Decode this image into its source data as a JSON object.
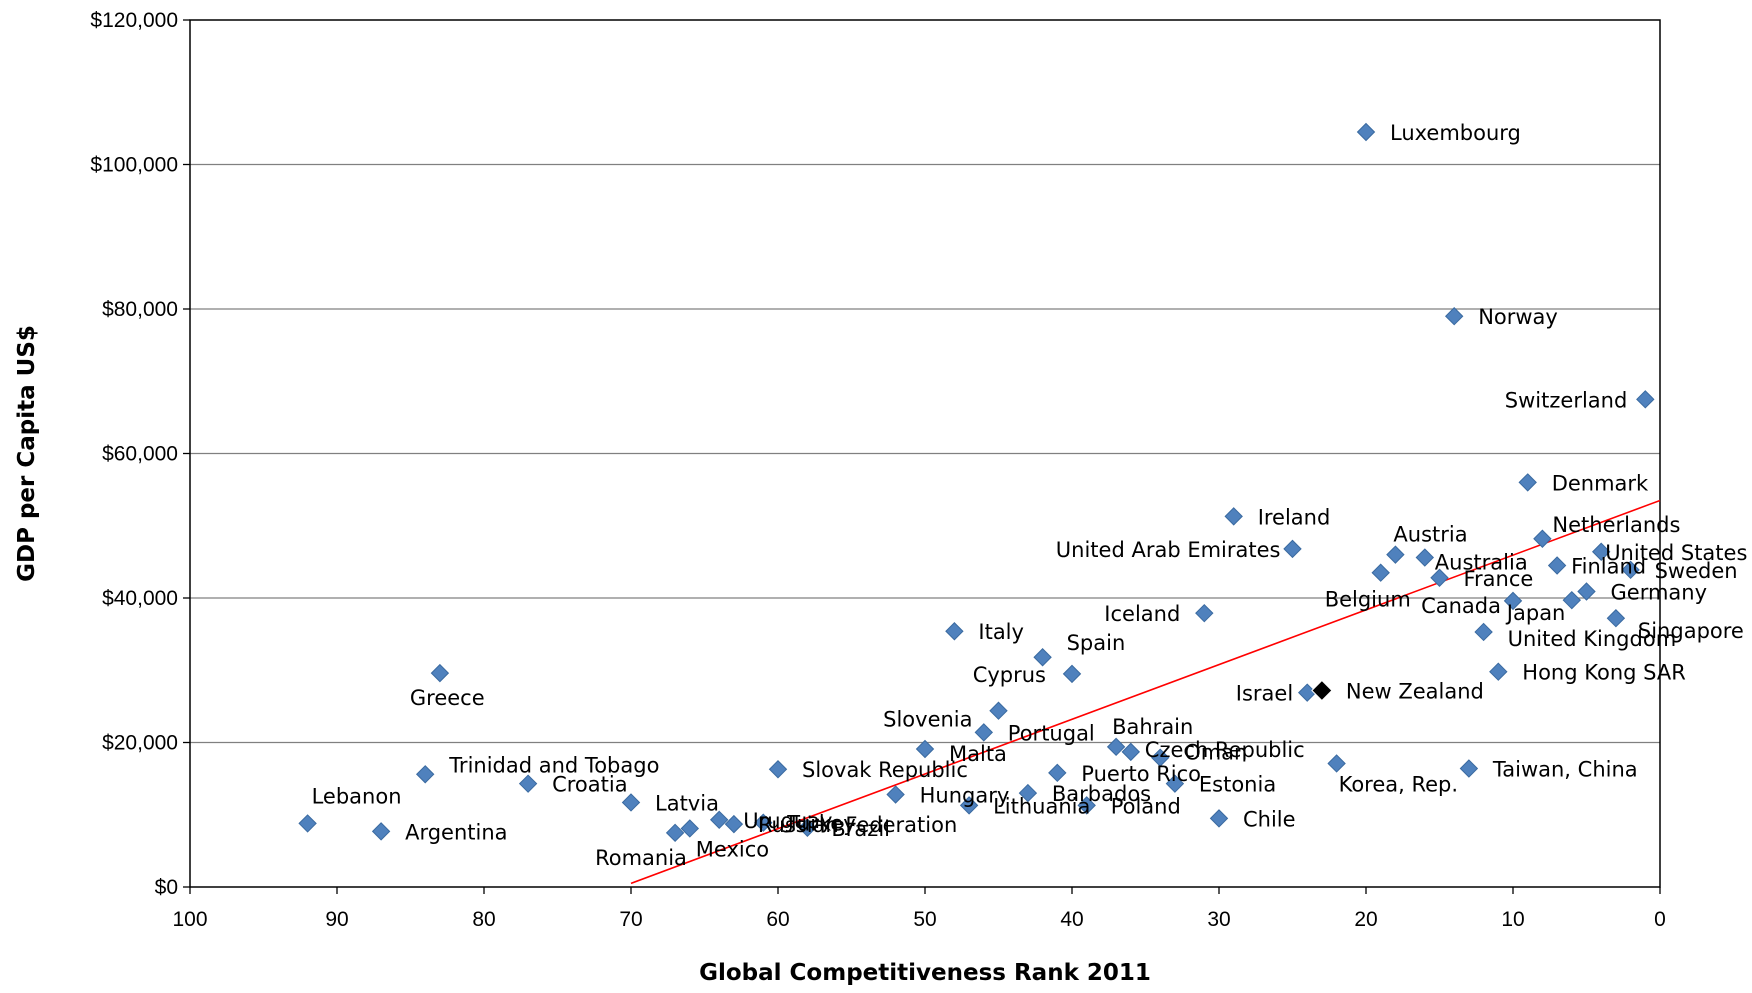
{
  "chart_data": {
    "type": "scatter",
    "title": "",
    "xlabel": "Global Competitiveness Rank 2011",
    "ylabel": "GDP per Capita US$",
    "xlim": [
      100,
      0
    ],
    "x_reversed": true,
    "ylim": [
      0,
      120000
    ],
    "xticks": [
      "100",
      "90",
      "80",
      "70",
      "60",
      "50",
      "40",
      "30",
      "20",
      "10",
      "0"
    ],
    "yticks": [
      "$0",
      "$20,000",
      "$40,000",
      "$60,000",
      "$80,000",
      "$100,000",
      "$120,000"
    ],
    "grid": "horizontal",
    "legend": "none",
    "colors": {
      "marker": "#4f81bd",
      "marker_edge": "#3a6aa0",
      "highlight": "#000000",
      "trendline": "#ff0000",
      "grid": "#808080"
    },
    "trendline": {
      "x": [
        70,
        0
      ],
      "y": [
        500,
        53500
      ]
    },
    "points": [
      {
        "label": "Luxembourg",
        "x": 20,
        "y": 104500
      },
      {
        "label": "Norway",
        "x": 14,
        "y": 79000
      },
      {
        "label": "Switzerland",
        "x": 1,
        "y": 67500
      },
      {
        "label": "Denmark",
        "x": 9,
        "y": 56000
      },
      {
        "label": "Ireland",
        "x": 29,
        "y": 51300
      },
      {
        "label": "United Arab Emirates",
        "x": 25,
        "y": 46800
      },
      {
        "label": "Netherlands",
        "x": 8,
        "y": 48200
      },
      {
        "label": "Austria",
        "x": 18,
        "y": 46000
      },
      {
        "label": "Australia",
        "x": 16,
        "y": 45600
      },
      {
        "label": "United States",
        "x": 4,
        "y": 46400
      },
      {
        "label": "Finland",
        "x": 7,
        "y": 44500
      },
      {
        "label": "Sweden",
        "x": 2,
        "y": 43900
      },
      {
        "label": "Belgium",
        "x": 19,
        "y": 43500
      },
      {
        "label": "France",
        "x": 15,
        "y": 42800
      },
      {
        "label": "Germany",
        "x": 5,
        "y": 40900
      },
      {
        "label": "Canada",
        "x": 10,
        "y": 39600
      },
      {
        "label": "Japan",
        "x": 6,
        "y": 39700
      },
      {
        "label": "Iceland",
        "x": 31,
        "y": 37900
      },
      {
        "label": "Singapore",
        "x": 3,
        "y": 37200
      },
      {
        "label": "Italy",
        "x": 48,
        "y": 35400
      },
      {
        "label": "United Kingdom",
        "x": 12,
        "y": 35300
      },
      {
        "label": "Spain",
        "x": 42,
        "y": 31800
      },
      {
        "label": "Cyprus",
        "x": 40,
        "y": 29500
      },
      {
        "label": "Hong Kong SAR",
        "x": 11,
        "y": 29800
      },
      {
        "label": "Greece",
        "x": 83,
        "y": 29600
      },
      {
        "label": "Israel",
        "x": 24,
        "y": 26900
      },
      {
        "label": "New Zealand",
        "x": 23,
        "y": 27200,
        "highlight": true
      },
      {
        "label": "Slovenia",
        "x": 45,
        "y": 24400
      },
      {
        "label": "Portugal",
        "x": 46,
        "y": 21400
      },
      {
        "label": "Bahrain",
        "x": 37,
        "y": 19400
      },
      {
        "label": "Czech Republic",
        "x": 36,
        "y": 18700
      },
      {
        "label": "Malta",
        "x": 50,
        "y": 19100
      },
      {
        "label": "Oman",
        "x": 34,
        "y": 17900
      },
      {
        "label": "Korea, Rep.",
        "x": 22,
        "y": 17100
      },
      {
        "label": "Taiwan, China",
        "x": 13,
        "y": 16400
      },
      {
        "label": "Slovak Republic",
        "x": 60,
        "y": 16300
      },
      {
        "label": "Puerto Rico",
        "x": 41,
        "y": 15800
      },
      {
        "label": "Trinidad and Tobago",
        "x": 84,
        "y": 15600
      },
      {
        "label": "Croatia",
        "x": 77,
        "y": 14300
      },
      {
        "label": "Estonia",
        "x": 33,
        "y": 14300
      },
      {
        "label": "Barbados",
        "x": 43,
        "y": 13000
      },
      {
        "label": "Hungary",
        "x": 52,
        "y": 12800
      },
      {
        "label": "Latvia",
        "x": 70,
        "y": 11700
      },
      {
        "label": "Lithuania",
        "x": 47,
        "y": 11300
      },
      {
        "label": "Poland",
        "x": 39,
        "y": 11300
      },
      {
        "label": "Chile",
        "x": 30,
        "y": 9500
      },
      {
        "label": "Uruguay",
        "x": 64,
        "y": 9300
      },
      {
        "label": "Lebanon",
        "x": 92,
        "y": 8800
      },
      {
        "label": "Turkey",
        "x": 61,
        "y": 8900
      },
      {
        "label": "Russian Federation",
        "x": 63,
        "y": 8700
      },
      {
        "label": "Brazil",
        "x": 58,
        "y": 8200
      },
      {
        "label": "Mexico",
        "x": 66,
        "y": 8100
      },
      {
        "label": "Argentina",
        "x": 87,
        "y": 7700
      },
      {
        "label": "Romania",
        "x": 67,
        "y": 7500
      }
    ]
  }
}
